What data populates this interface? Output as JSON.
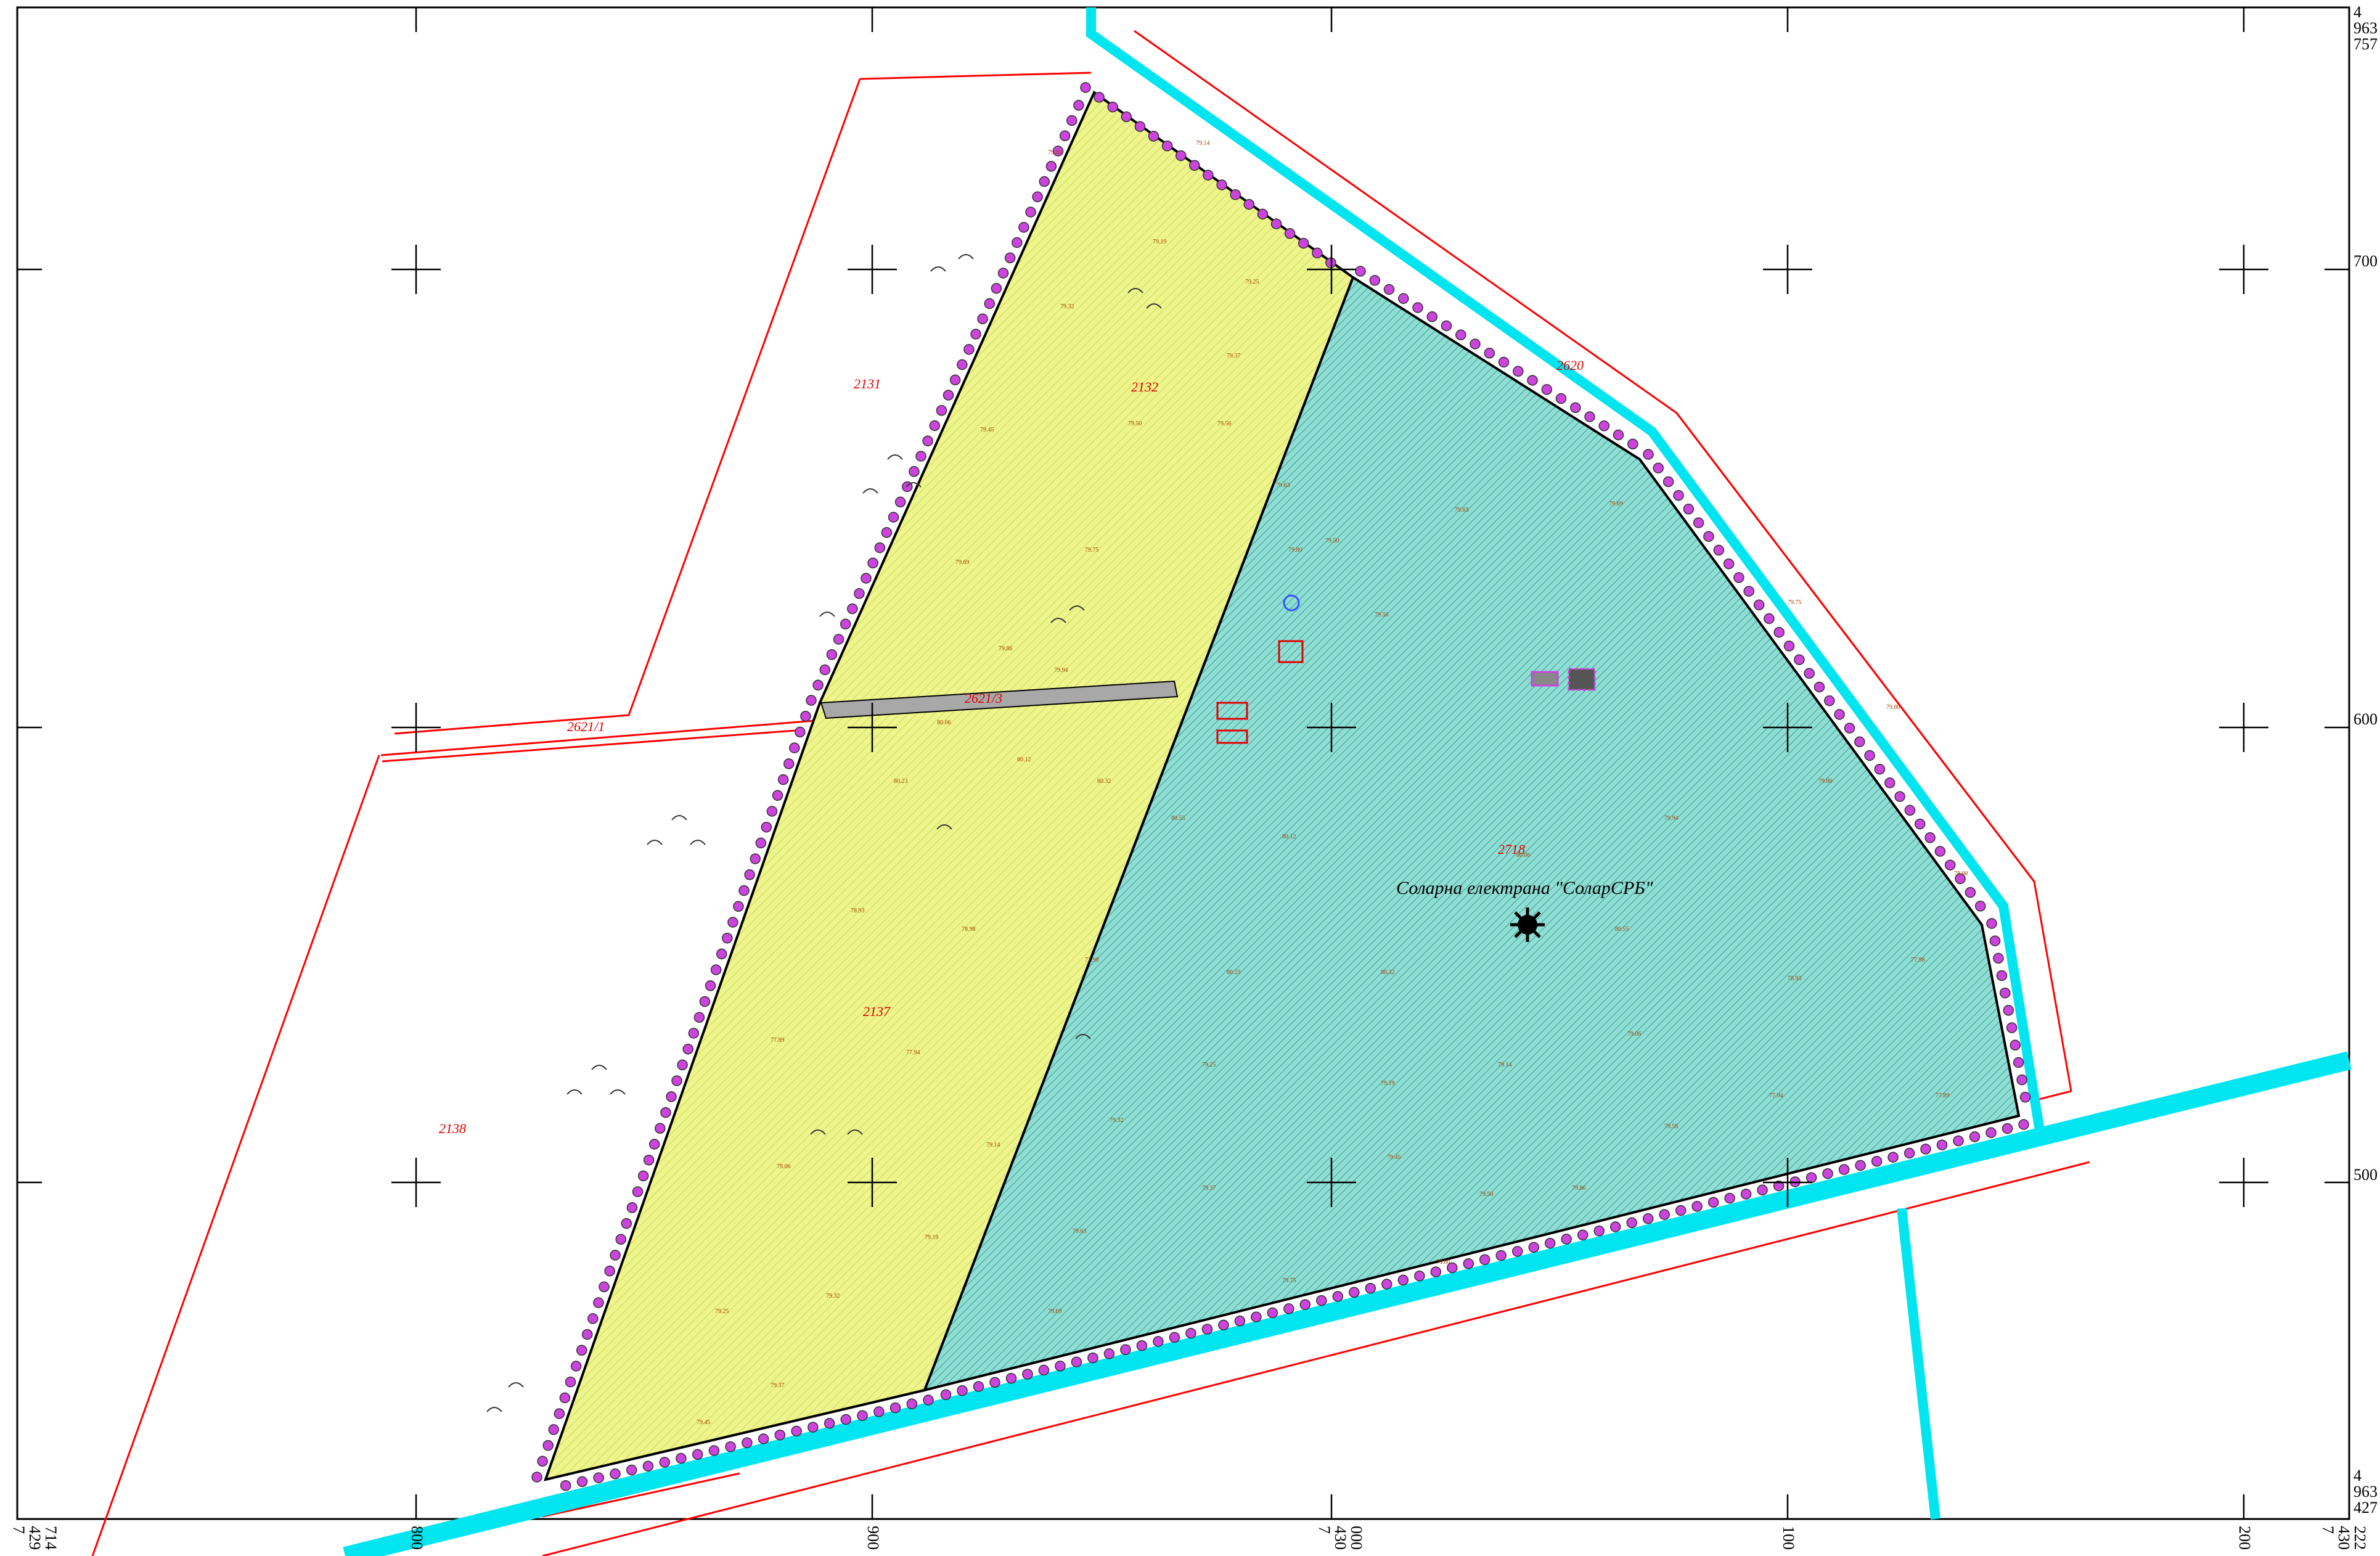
{
  "map_title": "Солaрна електрана \"СоларСРБ\"",
  "colors": {
    "frame": "#000000",
    "yellow_fill": "#eef58c",
    "teal_fill": "#7fd9cf",
    "cadastre_line": "#ff0000",
    "road": "#00e5f0",
    "fence_post": "#cc44dd",
    "parcel_text": "#e00000",
    "elevation_text": "#a04000"
  },
  "axes": {
    "right_ticks": [
      {
        "label": "4",
        "line2": "963",
        "line3": "757",
        "kind": "corner-top"
      },
      {
        "label": "700"
      },
      {
        "label": "600"
      },
      {
        "label": "500"
      },
      {
        "label": "4",
        "line2": "963",
        "line3": "427",
        "kind": "corner-bottom"
      }
    ],
    "bottom_ticks": [
      {
        "label": "7",
        "line2": "429",
        "line3": "714",
        "kind": "corner-left"
      },
      {
        "label": "800"
      },
      {
        "label": "900"
      },
      {
        "label": "7",
        "line2": "430",
        "line3": "000"
      },
      {
        "label": "100"
      },
      {
        "label": "200"
      },
      {
        "label": "7",
        "line2": "430",
        "line3": "222",
        "kind": "corner-right"
      }
    ]
  },
  "parcels": [
    {
      "id": "2131"
    },
    {
      "id": "2132"
    },
    {
      "id": "2621/3"
    },
    {
      "id": "2621/1"
    },
    {
      "id": "2137"
    },
    {
      "id": "2138"
    },
    {
      "id": "2718"
    },
    {
      "id": "2620"
    }
  ],
  "icons": {
    "sun": "sun-icon",
    "grid_cross": "grid-cross-icon",
    "fence_post": "fence-post-icon",
    "tree": "tree-arc-icon"
  },
  "elevation_samples": [
    "79.06",
    "79.14",
    "79.19",
    "79.25",
    "79.32",
    "79.37",
    "79.45",
    "79.50",
    "79.56",
    "79.63",
    "79.69",
    "79.75",
    "79.80",
    "79.86",
    "79.94",
    "80.06",
    "80.12",
    "80.23",
    "80.32",
    "80.55",
    "78.93",
    "78.98",
    "77.98",
    "77.89",
    "77.94"
  ]
}
